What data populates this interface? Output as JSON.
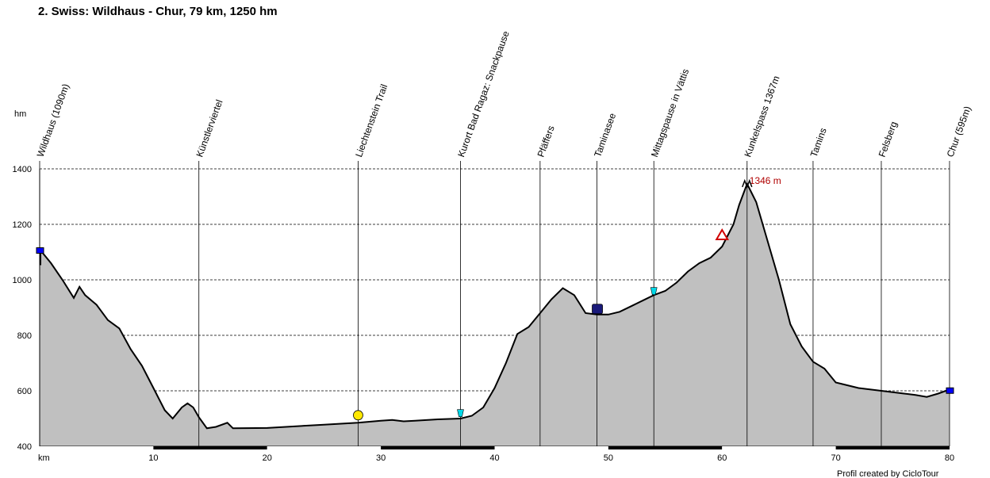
{
  "chart_data": {
    "type": "area",
    "title": "2. Swiss: Wildhaus - Chur, 79 km, 1250 hm",
    "ylabel": "hm",
    "xlabel": "km",
    "xlim": [
      0,
      80
    ],
    "ylim": [
      400,
      1400
    ],
    "xticks": [
      "km",
      "10",
      "20",
      "30",
      "40",
      "50",
      "60",
      "70",
      "80"
    ],
    "yticks": [
      "400",
      "600",
      "800",
      "1000",
      "1200",
      "1400"
    ],
    "grid": "horizontal dashed",
    "colors": {
      "fill": "#c0c0c0",
      "line": "#000000",
      "peak_label": "#b00000",
      "marker": "#0000ff"
    },
    "peak_label": "1346 m",
    "credit": "Profil created by CicloTour",
    "waypoints": [
      {
        "label": "Wildhaus (1090m)",
        "x": 0
      },
      {
        "label": "Künstlerviertel",
        "x": 14
      },
      {
        "label": "Liechtenstein Trail",
        "x": 28
      },
      {
        "label": "Kurort Bad Ragaz: Snackpause",
        "x": 37
      },
      {
        "label": "Pfäffers",
        "x": 44
      },
      {
        "label": "Taminasee",
        "x": 49
      },
      {
        "label": "Mittagspause in Vättis",
        "x": 54
      },
      {
        "label": "Kunkelspass 1367m",
        "x": 62.2
      },
      {
        "label": "Tamins",
        "x": 68
      },
      {
        "label": "Felsberg",
        "x": 74
      },
      {
        "label": "Chur (595m)",
        "x": 80
      }
    ],
    "series": [
      {
        "x": [
          0,
          1,
          2,
          3,
          3.5,
          4,
          5,
          6,
          7,
          8,
          9,
          10,
          11,
          11.7,
          12.5,
          13,
          13.5,
          14,
          14.7,
          15.5,
          16.5,
          17,
          20,
          25,
          28,
          30,
          31,
          32,
          33,
          35,
          37,
          38,
          39,
          40,
          41,
          42,
          43,
          44,
          45,
          46,
          47,
          48,
          49,
          50,
          51,
          52,
          53,
          54,
          55,
          56,
          57,
          58,
          59,
          60,
          61,
          61.5,
          62.2,
          63,
          64,
          65,
          66,
          67,
          68,
          69,
          70,
          71,
          72,
          73,
          74,
          75,
          76,
          77,
          78,
          79,
          80
        ],
        "y": [
          1110,
          1060,
          1000,
          935,
          975,
          945,
          910,
          855,
          825,
          750,
          690,
          610,
          530,
          500,
          540,
          555,
          540,
          505,
          465,
          470,
          485,
          465,
          466,
          478,
          485,
          492,
          495,
          490,
          492,
          497,
          500,
          510,
          540,
          610,
          700,
          805,
          830,
          880,
          930,
          970,
          945,
          880,
          875,
          875,
          885,
          905,
          925,
          945,
          960,
          990,
          1030,
          1060,
          1080,
          1120,
          1200,
          1270,
          1346,
          1280,
          1140,
          1000,
          840,
          760,
          705,
          680,
          630,
          620,
          610,
          605,
          600,
          595,
          590,
          585,
          578,
          590,
          605
        ]
      }
    ]
  }
}
